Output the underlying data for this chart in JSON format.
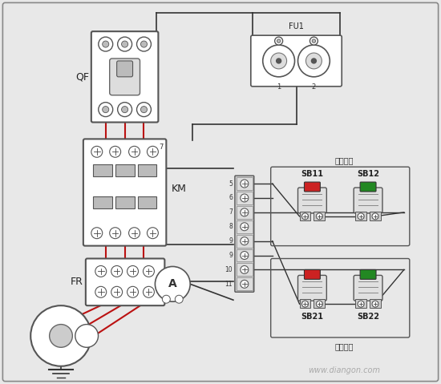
{
  "bg_color": "#e8e8e8",
  "white": "#ffffff",
  "line_color": "#333333",
  "red_wire": "#bb1111",
  "black_wire": "#333333",
  "gray_wire": "#555555",
  "watermark": "www.diangon.com",
  "labels": {
    "QF": "QF",
    "FU1": "FU1",
    "KM": "KM",
    "FR": "FR",
    "SB11": "SB11",
    "SB12": "SB12",
    "SB21": "SB21",
    "SB22": "SB22",
    "jia": "甲地控制",
    "yi": "乙地控制"
  }
}
